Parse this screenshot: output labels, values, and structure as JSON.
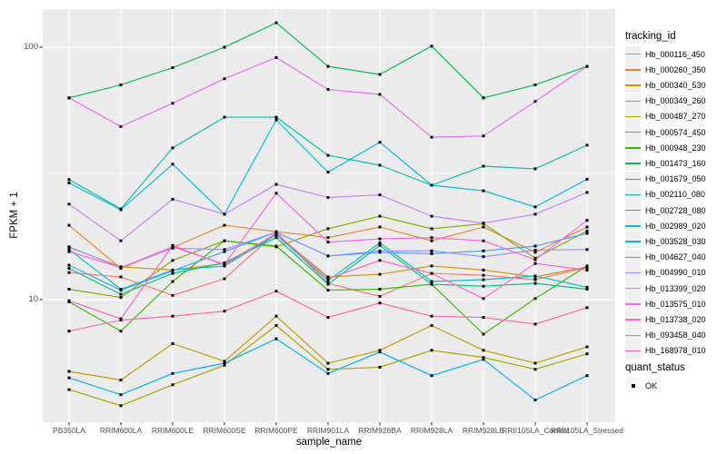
{
  "legend": {
    "tracking_title": "tracking_id",
    "quant_title": "quant_status",
    "quant_value": "OK",
    "quant_marker": "black-square-point"
  },
  "chart_data": {
    "type": "line",
    "title": "",
    "xlabel": "sample_name",
    "ylabel": "FPKM + 1",
    "y_scale": "log10",
    "y_ticks": [
      10,
      100
    ],
    "ylim": [
      3.2,
      142
    ],
    "grid": "on",
    "panel_background": "#ebebeb",
    "legend_position": "right",
    "marker": "small black square (quant_status OK)",
    "categories": [
      "PB350LA",
      "RRIM600LA",
      "RRIM600LE",
      "RRIM600SE",
      "RRIM600PE",
      "RRIM901LA",
      "RRIM928BA",
      "RRIM928LA",
      "RRIM928LE",
      "RRII105LA_Control",
      "RRII105LA_Stressed"
    ],
    "series": [
      {
        "name": "Hb_000116_450",
        "color": "#F8766D",
        "values": [
          12.8,
          12.3,
          10.4,
          12.1,
          18.5,
          11.6,
          10.3,
          12.7,
          12.5,
          12.0,
          13.4
        ]
      },
      {
        "name": "Hb_000260_350",
        "color": "#EA8331",
        "values": [
          19.7,
          13.3,
          16.1,
          19.7,
          18.6,
          17.6,
          19.4,
          17.1,
          19.4,
          15.4,
          19.4
        ]
      },
      {
        "name": "Hb_000340_530",
        "color": "#D89000",
        "values": [
          16.1,
          13.5,
          13.1,
          13.9,
          18.2,
          12.3,
          12.6,
          13.6,
          13.1,
          12.3,
          13.5
        ]
      },
      {
        "name": "Hb_000349_260",
        "color": "#C09B00",
        "values": [
          5.2,
          4.8,
          6.7,
          5.7,
          8.6,
          5.6,
          6.3,
          7.9,
          6.3,
          5.6,
          6.5
        ]
      },
      {
        "name": "Hb_000487_270",
        "color": "#A3A500",
        "values": [
          4.4,
          3.8,
          4.6,
          5.5,
          7.9,
          5.3,
          5.4,
          6.3,
          5.9,
          5.3,
          6.1
        ]
      },
      {
        "name": "Hb_000574_450",
        "color": "#7CAE00",
        "values": [
          11.0,
          10.2,
          14.3,
          17.1,
          16.2,
          19.1,
          21.4,
          19.1,
          20.0,
          14.6,
          18.7
        ]
      },
      {
        "name": "Hb_000948_230",
        "color": "#39B600",
        "values": [
          9.8,
          7.5,
          11.8,
          17.1,
          16.3,
          10.9,
          11.0,
          11.5,
          7.3,
          10.1,
          13.6
        ]
      },
      {
        "name": "Hb_001473_160",
        "color": "#00BB4E",
        "values": [
          63,
          71,
          83,
          100,
          125,
          84,
          78,
          101,
          63,
          71,
          84
        ]
      },
      {
        "name": "Hb_001679_050",
        "color": "#00BF7D",
        "values": [
          13.3,
          10.5,
          12.7,
          14.0,
          17.6,
          11.5,
          16.4,
          11.5,
          11.3,
          11.6,
          11.0
        ]
      },
      {
        "name": "Hb_002110_080",
        "color": "#00C1A3",
        "values": [
          29.9,
          22.9,
          39.9,
          52.8,
          52.8,
          37.3,
          34.1,
          28.4,
          33.8,
          33.0,
          40.9
        ]
      },
      {
        "name": "Hb_002728_080",
        "color": "#00BFC4",
        "values": [
          15.8,
          11.0,
          13.1,
          13.6,
          18.1,
          11.9,
          16.8,
          11.8,
          12.0,
          12.4,
          11.2
        ]
      },
      {
        "name": "Hb_002989_020",
        "color": "#00BAE0",
        "values": [
          29.0,
          22.7,
          34.4,
          21.8,
          51.5,
          32.0,
          42.0,
          28.4,
          27.0,
          23.3,
          30.0
        ]
      },
      {
        "name": "Hb_003528_030",
        "color": "#00B0F6",
        "values": [
          4.9,
          4.2,
          5.1,
          5.6,
          7.0,
          5.1,
          6.2,
          5.0,
          5.8,
          4.0,
          5.0
        ]
      },
      {
        "name": "Hb_004627_040",
        "color": "#35A2FF",
        "values": [
          13.7,
          10.9,
          13.0,
          15.5,
          18.5,
          14.9,
          15.4,
          15.2,
          15.6,
          16.3,
          18.3
        ]
      },
      {
        "name": "Hb_004990_010",
        "color": "#9590FF",
        "values": [
          16.2,
          13.4,
          16.0,
          15.8,
          18.5,
          14.9,
          15.6,
          15.6,
          14.8,
          15.7,
          15.8
        ]
      },
      {
        "name": "Hb_013399_020",
        "color": "#C77CFF",
        "values": [
          23.9,
          17.1,
          25.0,
          21.8,
          28.6,
          25.4,
          26.0,
          21.4,
          20.1,
          21.8,
          26.6
        ]
      },
      {
        "name": "Hb_013575_010",
        "color": "#E76BF3",
        "values": [
          63,
          48.5,
          60,
          75,
          91,
          68,
          65,
          44,
          44.5,
          61,
          84
        ]
      },
      {
        "name": "Hb_013738_020",
        "color": "#FA62DB",
        "values": [
          15.5,
          13.4,
          16.2,
          13.8,
          26.4,
          16.9,
          17.4,
          17.6,
          17.1,
          14.4,
          20.6
        ]
      },
      {
        "name": "Hb_093458_040",
        "color": "#FF61C9",
        "values": [
          9.9,
          8.4,
          16.4,
          13.7,
          18.3,
          12.1,
          14.3,
          12.7,
          10.1,
          13.9,
          13.1
        ]
      },
      {
        "name": "Hb_168978_010",
        "color": "#FF65AC",
        "values": [
          7.5,
          8.3,
          8.6,
          9.0,
          10.8,
          8.5,
          9.7,
          8.6,
          8.5,
          8.0,
          9.3
        ]
      }
    ]
  }
}
